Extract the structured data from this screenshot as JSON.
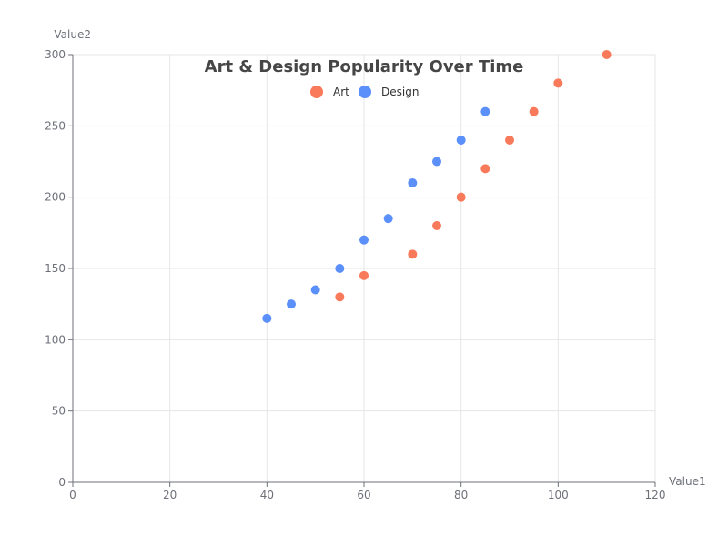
{
  "chart_data": {
    "type": "scatter",
    "title": "Art & Design Popularity Over Time",
    "xlabel": "Value1",
    "ylabel": "Value2",
    "xlim": [
      0,
      120
    ],
    "ylim": [
      0,
      300
    ],
    "xticks": [
      0,
      20,
      40,
      60,
      80,
      100,
      120
    ],
    "yticks": [
      0,
      50,
      100,
      150,
      200,
      250,
      300
    ],
    "grid": true,
    "legend_position": "top-center",
    "series": [
      {
        "name": "Art",
        "color": "#f87a5a",
        "points": [
          [
            55,
            130
          ],
          [
            60,
            145
          ],
          [
            70,
            160
          ],
          [
            75,
            180
          ],
          [
            80,
            200
          ],
          [
            85,
            220
          ],
          [
            90,
            240
          ],
          [
            95,
            260
          ],
          [
            100,
            280
          ],
          [
            110,
            300
          ]
        ]
      },
      {
        "name": "Design",
        "color": "#5b8ff9",
        "points": [
          [
            40,
            115
          ],
          [
            45,
            125
          ],
          [
            50,
            135
          ],
          [
            55,
            150
          ],
          [
            60,
            170
          ],
          [
            65,
            185
          ],
          [
            70,
            210
          ],
          [
            75,
            225
          ],
          [
            80,
            240
          ],
          [
            85,
            260
          ]
        ]
      }
    ]
  }
}
